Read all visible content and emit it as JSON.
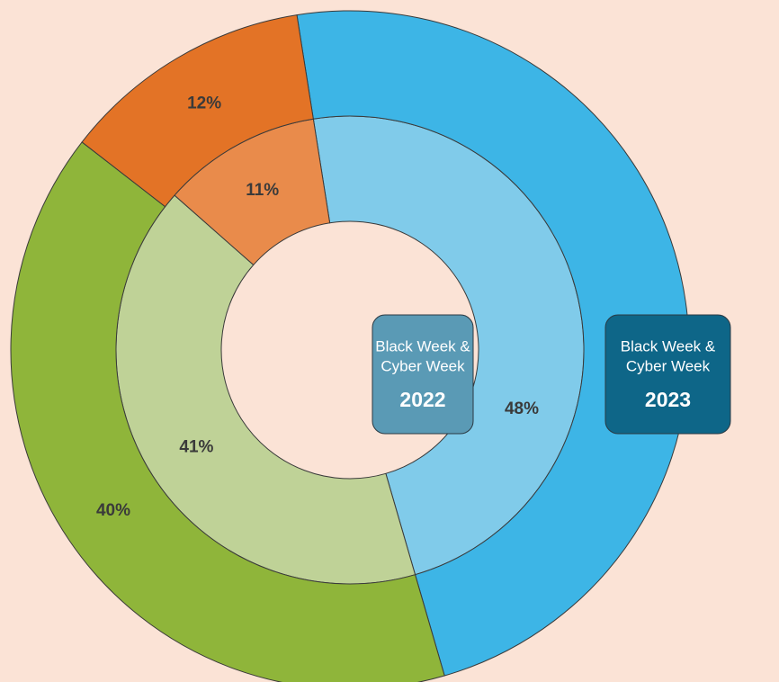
{
  "chart_data": {
    "type": "nested-donut",
    "series": [
      {
        "name": "2022",
        "caption": [
          "Black Week &",
          "Cyber Week"
        ],
        "values": [
          48,
          41,
          11
        ],
        "value_labels": [
          "48%",
          "41%",
          "11%"
        ],
        "colors": [
          "#80cbea",
          "#bfd297",
          "#e98b4b"
        ],
        "box_color": "#5a9ab5"
      },
      {
        "name": "2023",
        "caption": [
          "Black Week &",
          "Cyber Week"
        ],
        "values": [
          48,
          40,
          12
        ],
        "value_labels": [
          "48%",
          "40%",
          "12%"
        ],
        "colors": [
          "#3db5e6",
          "#8fb53a",
          "#e37326"
        ],
        "box_color": "#0e6688"
      }
    ]
  }
}
